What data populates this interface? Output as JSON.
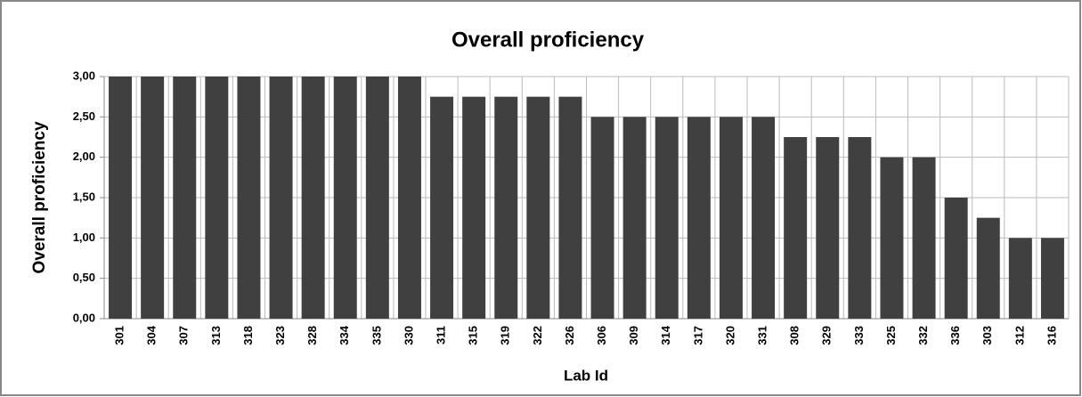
{
  "chart_data": {
    "type": "bar",
    "title": "Overall proficiency",
    "x_label": "Lab Id",
    "y_label": "Overall proficiency",
    "categories": [
      "301",
      "304",
      "307",
      "313",
      "318",
      "323",
      "328",
      "334",
      "335",
      "330",
      "311",
      "315",
      "319",
      "322",
      "326",
      "306",
      "309",
      "314",
      "317",
      "320",
      "331",
      "308",
      "329",
      "333",
      "325",
      "332",
      "336",
      "303",
      "312",
      "316"
    ],
    "values": [
      3,
      3,
      3,
      3,
      3,
      3,
      3,
      3,
      3,
      3,
      2.75,
      2.75,
      2.75,
      2.75,
      2.75,
      2.5,
      2.5,
      2.5,
      2.5,
      2.5,
      2.5,
      2.25,
      2.25,
      2.25,
      2,
      2,
      1.5,
      1.25,
      1,
      1
    ],
    "color": "#404040",
    "ylim": [
      0,
      3
    ],
    "yticks": [
      {
        "value": 0,
        "label": "0,00"
      },
      {
        "value": 0.5,
        "label": "0,50"
      },
      {
        "value": 1,
        "label": "1,00"
      },
      {
        "value": 1.5,
        "label": "1,50"
      },
      {
        "value": 2,
        "label": "2,00"
      },
      {
        "value": 2.5,
        "label": "2,50"
      },
      {
        "value": 3,
        "label": "3,00"
      }
    ],
    "grid": true
  }
}
